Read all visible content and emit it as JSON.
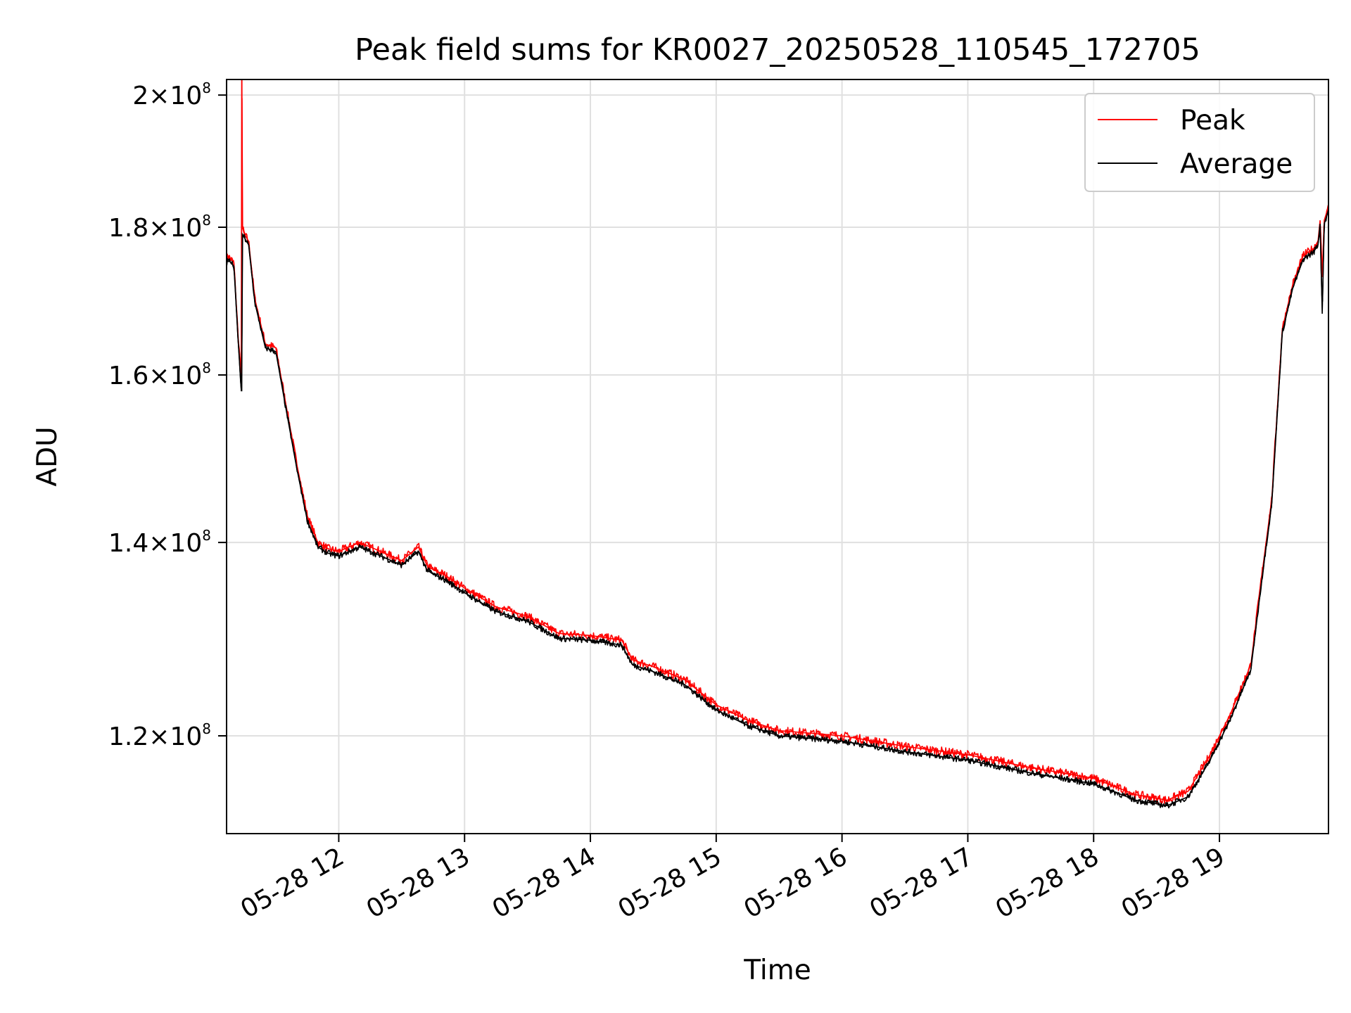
{
  "chart_data": {
    "type": "line",
    "title": "Peak field sums for KR0027_20250528_110545_172705",
    "xlabel": "Time",
    "ylabel": "ADU",
    "yscale": "log",
    "ylim": [
      111000000,
      202500000
    ],
    "xlim": [
      "2025-05-28 11:06:30",
      "2025-05-28 19:52:00"
    ],
    "grid": true,
    "legend_position": "upper right",
    "xtick_labels": [
      "05-28 12",
      "05-28 13",
      "05-28 14",
      "05-28 15",
      "05-28 16",
      "05-28 17",
      "05-28 18",
      "05-28 19"
    ],
    "xtick_values": [
      "2025-05-28 12:00",
      "2025-05-28 13:00",
      "2025-05-28 14:00",
      "2025-05-28 15:00",
      "2025-05-28 16:00",
      "2025-05-28 17:00",
      "2025-05-28 18:00",
      "2025-05-28 19:00"
    ],
    "ytick_labels": [
      {
        "mantissa": "1.2",
        "exp": "8"
      },
      {
        "mantissa": "1.4",
        "exp": "8"
      },
      {
        "mantissa": "1.6",
        "exp": "8"
      },
      {
        "mantissa": "1.8",
        "exp": "8"
      },
      {
        "mantissa": "2",
        "exp": "8"
      }
    ],
    "ytick_values": [
      120000000,
      140000000,
      160000000,
      180000000,
      200000000
    ],
    "series": [
      {
        "name": "Peak",
        "color": "#ff0000",
        "x": [
          "2025-05-28 11:06:30",
          "2025-05-28 11:07:00",
          "2025-05-28 11:10:00",
          "2025-05-28 11:12:00",
          "2025-05-28 11:13:30",
          "2025-05-28 11:13:45",
          "2025-05-28 11:14:00",
          "2025-05-28 11:15:00",
          "2025-05-28 11:17:00",
          "2025-05-28 11:20:00",
          "2025-05-28 11:25:00",
          "2025-05-28 11:30:00",
          "2025-05-28 11:35:00",
          "2025-05-28 11:40:00",
          "2025-05-28 11:45:00",
          "2025-05-28 11:50:00",
          "2025-05-28 11:55:00",
          "2025-05-28 12:00:00",
          "2025-05-28 12:10:00",
          "2025-05-28 12:20:00",
          "2025-05-28 12:30:00",
          "2025-05-28 12:38:00",
          "2025-05-28 12:42:00",
          "2025-05-28 12:45:00",
          "2025-05-28 12:50:00",
          "2025-05-28 13:00:00",
          "2025-05-28 13:15:00",
          "2025-05-28 13:30:00",
          "2025-05-28 13:45:00",
          "2025-05-28 14:00:00",
          "2025-05-28 14:15:00",
          "2025-05-28 14:20:00",
          "2025-05-28 14:30:00",
          "2025-05-28 14:45:00",
          "2025-05-28 15:00:00",
          "2025-05-28 15:15:00",
          "2025-05-28 15:30:00",
          "2025-05-28 16:00:00",
          "2025-05-28 16:30:00",
          "2025-05-28 17:00:00",
          "2025-05-28 17:30:00",
          "2025-05-28 18:00:00",
          "2025-05-28 18:20:00",
          "2025-05-28 18:35:00",
          "2025-05-28 18:45:00",
          "2025-05-28 18:55:00",
          "2025-05-28 19:05:00",
          "2025-05-28 19:15:00",
          "2025-05-28 19:20:00",
          "2025-05-28 19:25:00",
          "2025-05-28 19:30:00",
          "2025-05-28 19:35:00",
          "2025-05-28 19:40:00",
          "2025-05-28 19:45:00",
          "2025-05-28 19:47:00",
          "2025-05-28 19:48:00",
          "2025-05-28 19:49:00",
          "2025-05-28 19:50:00",
          "2025-05-28 19:52:00"
        ],
        "y": [
          175000000,
          176000000,
          175000000,
          165000000,
          160000000,
          210000000,
          180000000,
          179000000,
          178000000,
          170000000,
          164000000,
          163500000,
          156000000,
          149000000,
          143000000,
          140000000,
          139300000,
          139000000,
          140000000,
          139000000,
          138000000,
          139500000,
          137500000,
          137000000,
          136500000,
          135000000,
          133000000,
          132000000,
          130200000,
          130000000,
          129500000,
          127500000,
          126800000,
          125500000,
          123000000,
          121500000,
          120500000,
          120000000,
          119000000,
          118200000,
          117000000,
          116000000,
          114500000,
          114000000,
          114800000,
          118000000,
          122000000,
          127000000,
          136000000,
          145000000,
          166000000,
          172000000,
          176000000,
          177000000,
          178000000,
          181000000,
          173000000,
          181000000,
          183000000
        ],
        "noise": 0.0035
      },
      {
        "name": "Average",
        "color": "#000000",
        "x": [
          "2025-05-28 11:06:30",
          "2025-05-28 11:07:00",
          "2025-05-28 11:10:00",
          "2025-05-28 11:12:00",
          "2025-05-28 11:13:30",
          "2025-05-28 11:13:45",
          "2025-05-28 11:14:00",
          "2025-05-28 11:15:00",
          "2025-05-28 11:17:00",
          "2025-05-28 11:20:00",
          "2025-05-28 11:25:00",
          "2025-05-28 11:30:00",
          "2025-05-28 11:35:00",
          "2025-05-28 11:40:00",
          "2025-05-28 11:45:00",
          "2025-05-28 11:50:00",
          "2025-05-28 11:55:00",
          "2025-05-28 12:00:00",
          "2025-05-28 12:10:00",
          "2025-05-28 12:20:00",
          "2025-05-28 12:30:00",
          "2025-05-28 12:38:00",
          "2025-05-28 12:42:00",
          "2025-05-28 12:45:00",
          "2025-05-28 12:50:00",
          "2025-05-28 13:00:00",
          "2025-05-28 13:15:00",
          "2025-05-28 13:30:00",
          "2025-05-28 13:45:00",
          "2025-05-28 14:00:00",
          "2025-05-28 14:15:00",
          "2025-05-28 14:20:00",
          "2025-05-28 14:30:00",
          "2025-05-28 14:45:00",
          "2025-05-28 15:00:00",
          "2025-05-28 15:15:00",
          "2025-05-28 15:30:00",
          "2025-05-28 16:00:00",
          "2025-05-28 16:30:00",
          "2025-05-28 17:00:00",
          "2025-05-28 17:30:00",
          "2025-05-28 18:00:00",
          "2025-05-28 18:20:00",
          "2025-05-28 18:35:00",
          "2025-05-28 18:45:00",
          "2025-05-28 18:55:00",
          "2025-05-28 19:05:00",
          "2025-05-28 19:15:00",
          "2025-05-28 19:20:00",
          "2025-05-28 19:25:00",
          "2025-05-28 19:30:00",
          "2025-05-28 19:35:00",
          "2025-05-28 19:40:00",
          "2025-05-28 19:45:00",
          "2025-05-28 19:47:00",
          "2025-05-28 19:48:00",
          "2025-05-28 19:49:00",
          "2025-05-28 19:50:00",
          "2025-05-28 19:52:00"
        ],
        "y": [
          174500000,
          175500000,
          174500000,
          164500000,
          158000000,
          158000000,
          179000000,
          178500000,
          177500000,
          169500000,
          163500000,
          163000000,
          155500000,
          148500000,
          142500000,
          139500000,
          138800000,
          138500000,
          139500000,
          138500000,
          137500000,
          139000000,
          137000000,
          136500000,
          136000000,
          134500000,
          132500000,
          131500000,
          129700000,
          129500000,
          129000000,
          127000000,
          126300000,
          125000000,
          122500000,
          121000000,
          120000000,
          119500000,
          118500000,
          117700000,
          116500000,
          115500000,
          114000000,
          113500000,
          114300000,
          117500000,
          121500000,
          126500000,
          135500000,
          144500000,
          165500000,
          171500000,
          175500000,
          176500000,
          177500000,
          180500000,
          168000000,
          180500000,
          182500000
        ],
        "noise": 0.0025
      }
    ]
  }
}
